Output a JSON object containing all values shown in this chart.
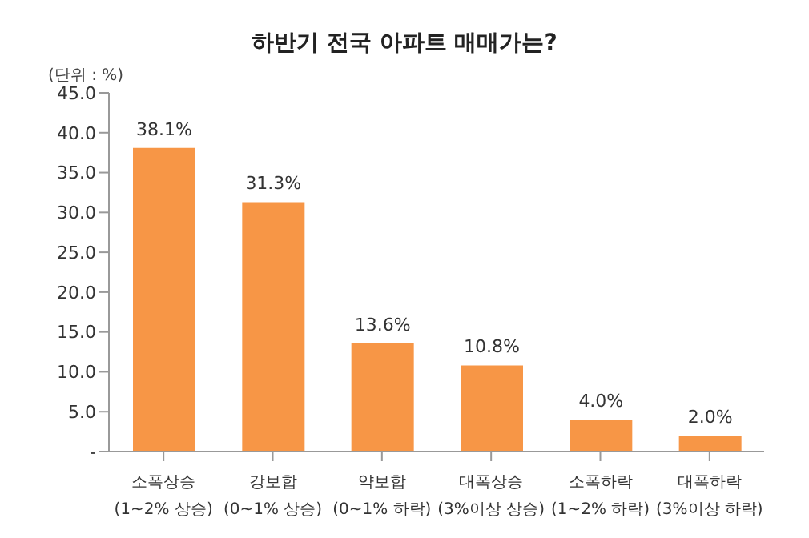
{
  "chart_data": {
    "type": "bar",
    "title": "하반기 전국 아파트 매매가는?",
    "ylabel": "(단위 : %)",
    "categories": [
      "소폭상승\n(1~2% 상승)",
      "강보합\n(0~1% 상승)",
      "약보합\n(0~1% 하락)",
      "대폭상승\n(3%이상 상승)",
      "소폭하락\n(1~2% 하락)",
      "대폭하락\n(3%이상 하락)"
    ],
    "values": [
      38.1,
      31.3,
      13.6,
      10.8,
      4.0,
      2.0
    ],
    "value_labels": [
      "38.1%",
      "31.3%",
      "13.6%",
      "10.8%",
      "4.0%",
      "2.0%"
    ],
    "color": "#f79646",
    "ylim": [
      0,
      45
    ],
    "yticks": [
      {
        "value": 0,
        "label": "-"
      },
      {
        "value": 5,
        "label": "5.0"
      },
      {
        "value": 10,
        "label": "10.0"
      },
      {
        "value": 15,
        "label": "15.0"
      },
      {
        "value": 20,
        "label": "20.0"
      },
      {
        "value": 25,
        "label": "25.0"
      },
      {
        "value": 30,
        "label": "30.0"
      },
      {
        "value": 35,
        "label": "35.0"
      },
      {
        "value": 40,
        "label": "40.0"
      },
      {
        "value": 45,
        "label": "45.0"
      }
    ],
    "grid": false
  }
}
